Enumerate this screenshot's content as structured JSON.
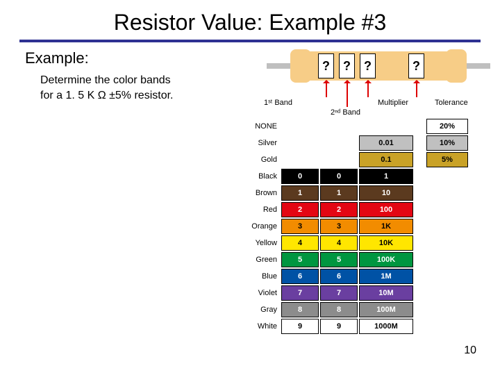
{
  "title": "Resistor Value: Example #3",
  "example_label": "Example:",
  "prompt_line1": "Determine the color bands",
  "prompt_line2": "for a 1. 5 K Ω ±5% resistor.",
  "pagenum": "10",
  "band_q": "?",
  "band_labels": {
    "b1": "1ˢᵗ Band",
    "b2": "2ⁿᵈ Band",
    "b3": "Multiplier",
    "b4": "Tolerance"
  },
  "colors": {
    "none": "#ffffff",
    "silver": "#c0c0c0",
    "gold": "#c9a227",
    "black": "#000000",
    "brown": "#5b3a1f",
    "red": "#e30613",
    "orange": "#f28c00",
    "yellow": "#ffe600",
    "green": "#009640",
    "blue": "#0052a5",
    "violet": "#6a3fa0",
    "gray": "#8c8c8c",
    "white": "#ffffff",
    "body": "#f7cd87",
    "lead": "#bfbfbf",
    "rule": "#2e3192",
    "arrow": "#d00000"
  },
  "chart": {
    "rows": [
      {
        "name": "NONE",
        "key": "none",
        "txt": "light",
        "b1": "",
        "b2": "",
        "m": "",
        "t": "20%"
      },
      {
        "name": "Silver",
        "key": "silver",
        "txt": "light",
        "b1": "",
        "b2": "",
        "m": "0.01",
        "t": "10%"
      },
      {
        "name": "Gold",
        "key": "gold",
        "txt": "light",
        "b1": "",
        "b2": "",
        "m": "0.1",
        "t": "5%"
      },
      {
        "name": "Black",
        "key": "black",
        "txt": "dark",
        "b1": "0",
        "b2": "0",
        "m": "1",
        "t": ""
      },
      {
        "name": "Brown",
        "key": "brown",
        "txt": "dark",
        "b1": "1",
        "b2": "1",
        "m": "10",
        "t": ""
      },
      {
        "name": "Red",
        "key": "red",
        "txt": "dark",
        "b1": "2",
        "b2": "2",
        "m": "100",
        "t": ""
      },
      {
        "name": "Orange",
        "key": "orange",
        "txt": "light",
        "b1": "3",
        "b2": "3",
        "m": "1K",
        "t": ""
      },
      {
        "name": "Yellow",
        "key": "yellow",
        "txt": "light",
        "b1": "4",
        "b2": "4",
        "m": "10K",
        "t": ""
      },
      {
        "name": "Green",
        "key": "green",
        "txt": "dark",
        "b1": "5",
        "b2": "5",
        "m": "100K",
        "t": ""
      },
      {
        "name": "Blue",
        "key": "blue",
        "txt": "dark",
        "b1": "6",
        "b2": "6",
        "m": "1M",
        "t": ""
      },
      {
        "name": "Violet",
        "key": "violet",
        "txt": "dark",
        "b1": "7",
        "b2": "7",
        "m": "10M",
        "t": ""
      },
      {
        "name": "Gray",
        "key": "gray",
        "txt": "dark",
        "b1": "8",
        "b2": "8",
        "m": "100M",
        "t": ""
      },
      {
        "name": "White",
        "key": "white",
        "txt": "light",
        "b1": "9",
        "b2": "9",
        "m": "1000M",
        "t": ""
      }
    ]
  }
}
